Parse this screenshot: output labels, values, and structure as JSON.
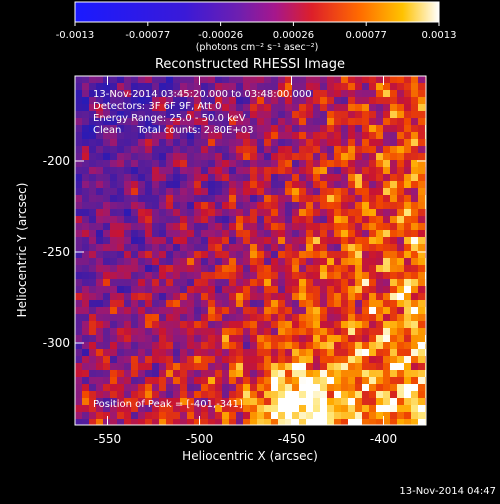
{
  "colorbar": {
    "tick_labels": [
      "-0.0013",
      "-0.00077",
      "-0.00026",
      "0.00026",
      "0.00077",
      "0.0013"
    ],
    "unit_label": "(photons cm⁻² s⁻¹ asec⁻²)"
  },
  "plot": {
    "title": "Reconstructed RHESSI Image",
    "info_lines": [
      "13-Nov-2014 03:45:20.000 to 03:48:00.000",
      "Detectors: 3F 6F 9F, Att 0",
      "Energy Range: 25.0 - 50.0 keV",
      "Clean     Total counts: 2.80E+03"
    ],
    "peak_text": "Position of Peak = [-401,-341]",
    "xlabel": "Heliocentric X (arcsec)",
    "ylabel": "Heliocentric Y (arcsec)",
    "x_ticks": [
      "-550",
      "-500",
      "-450",
      "-400"
    ],
    "y_ticks": [
      "-200",
      "-250",
      "-300"
    ],
    "xlim": [
      -568,
      -376
    ],
    "ylim": [
      -355,
      -163
    ]
  },
  "footer": {
    "timestamp": "13-Nov-2014 04:47"
  },
  "colors": {
    "background": "#000000",
    "foreground": "#ffffff"
  }
}
